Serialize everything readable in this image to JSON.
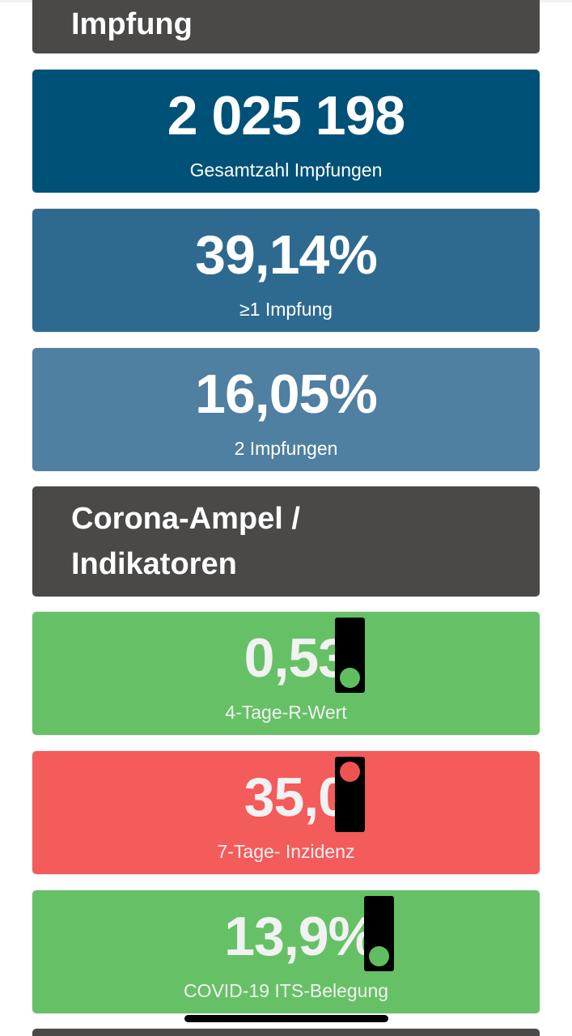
{
  "sections": {
    "impfung_title": "Impfung",
    "ampel_title_line1": "Corona-Ampel /",
    "ampel_title_line2": "Indikatoren"
  },
  "impfung": {
    "total": {
      "value": "2 025 198",
      "label": "Gesamtzahl Impfungen",
      "color": "#005177"
    },
    "first_dose": {
      "value": "39,14%",
      "label": "≥1 Impfung",
      "color": "#2e6a8f"
    },
    "second_dose": {
      "value": "16,05%",
      "label": "2 Impfungen",
      "color": "#4f7fa1"
    }
  },
  "ampel": {
    "r_value": {
      "value": "0,53",
      "label": "4-Tage-R-Wert",
      "status": "green",
      "color": "#66c166"
    },
    "incidence": {
      "value": "35,0",
      "label": "7-Tage- Inzidenz",
      "status": "red",
      "color": "#f45b5b"
    },
    "icu": {
      "value": "13,9%",
      "label": "COVID-19 ITS-Belegung",
      "status": "green",
      "color": "#66c166"
    }
  },
  "colors": {
    "header_bg": "#4a4948",
    "light_green": "#5fbf5f",
    "light_red": "#ef5350"
  }
}
